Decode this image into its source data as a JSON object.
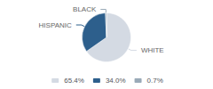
{
  "chart_data": {
    "type": "pie",
    "categories": [
      "WHITE",
      "HISPANIC",
      "BLACK"
    ],
    "values": [
      65.4,
      34.0,
      0.7
    ],
    "value_labels": [
      "65.4%",
      "34.0%",
      "0.7%"
    ],
    "colors": [
      "#d4dae3",
      "#2d5f8c",
      "#9aaab8"
    ],
    "legend": "bottom"
  }
}
